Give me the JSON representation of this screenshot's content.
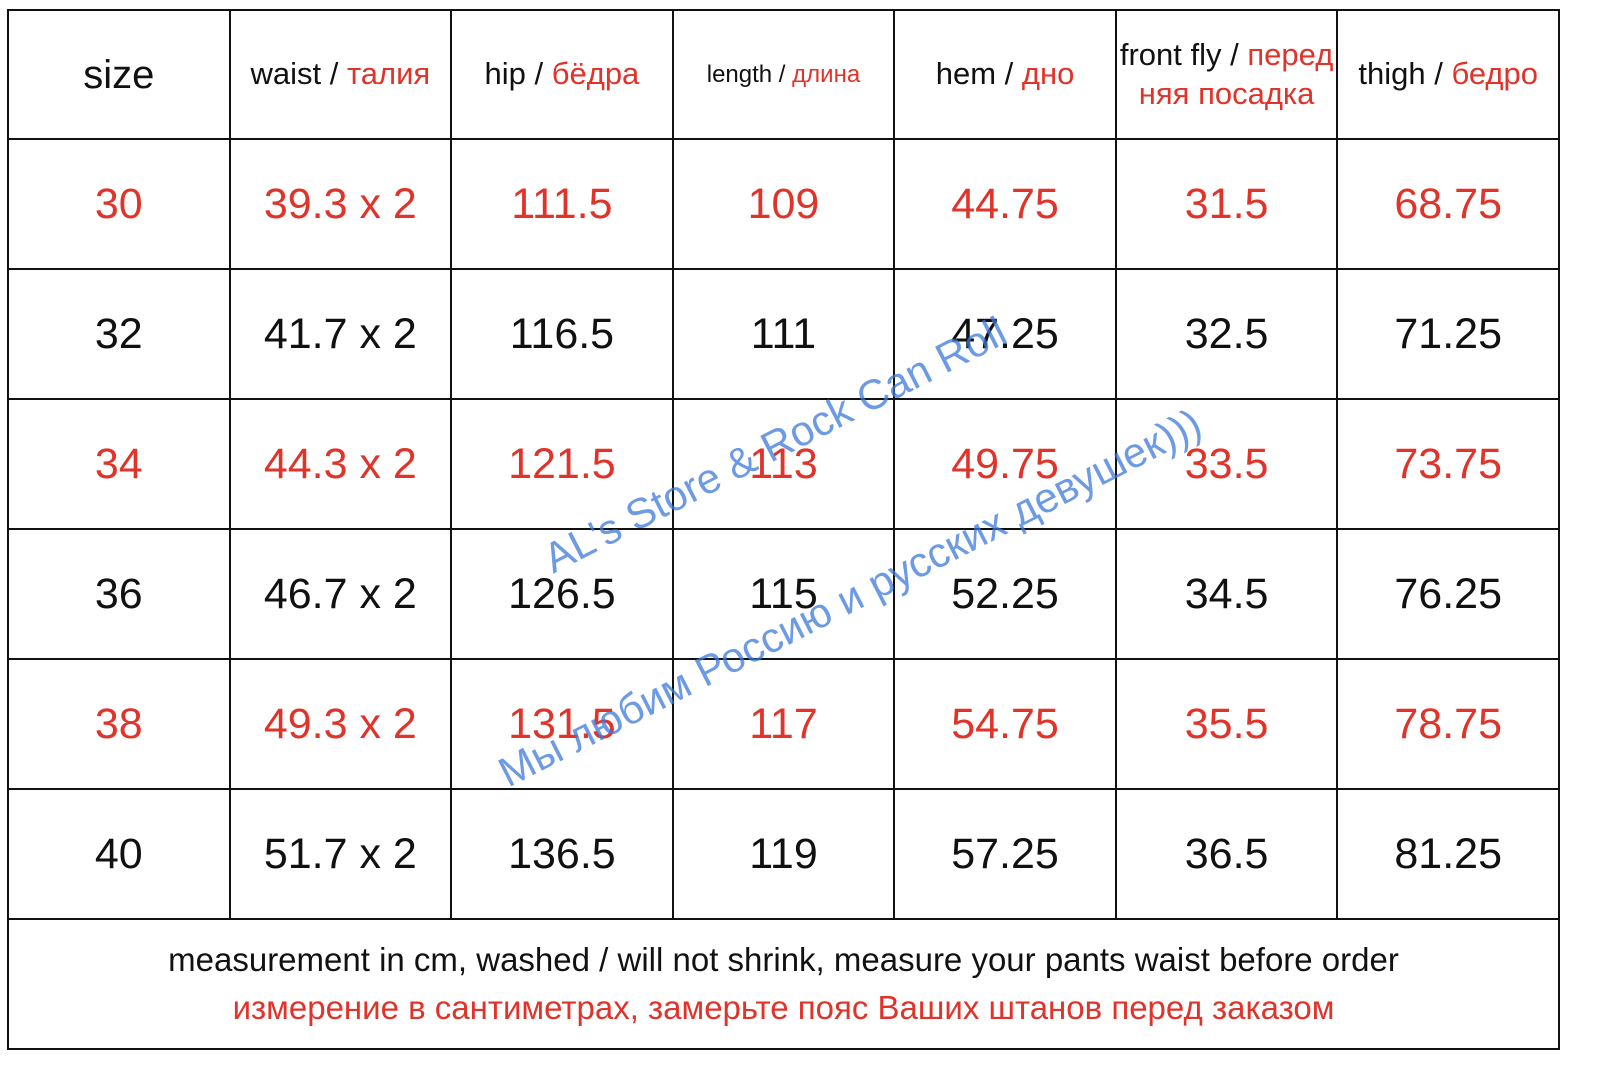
{
  "header": {
    "columns": [
      {
        "en": "size"
      },
      {
        "en": "waist /",
        "ru": "талия"
      },
      {
        "en": "hip /",
        "ru": "бёдра"
      },
      {
        "en": "length /",
        "ru": "длина"
      },
      {
        "en": "hem /",
        "ru": "дно"
      },
      {
        "en": "front fly /",
        "ru": "передняя посадка"
      },
      {
        "en": "thigh /",
        "ru": "бедро"
      }
    ]
  },
  "table": {
    "rows": [
      [
        "30",
        "39.3 x 2",
        "111.5",
        "109",
        "44.75",
        "31.5",
        "68.75"
      ],
      [
        "32",
        "41.7 x 2",
        "116.5",
        "111",
        "47.25",
        "32.5",
        "71.25"
      ],
      [
        "34",
        "44.3 x 2",
        "121.5",
        "113",
        "49.75",
        "33.5",
        "73.75"
      ],
      [
        "36",
        "46.7 x 2",
        "126.5",
        "115",
        "52.25",
        "34.5",
        "76.25"
      ],
      [
        "38",
        "49.3 x 2",
        "131.5",
        "117",
        "54.75",
        "35.5",
        "78.75"
      ],
      [
        "40",
        "51.7 x 2",
        "136.5",
        "119",
        "57.25",
        "36.5",
        "81.25"
      ]
    ]
  },
  "footer": {
    "en": "measurement in cm, washed / will not shrink, measure your pants waist before order",
    "ru": "измерение в сантиметрах, замерьте пояс Ваших штанов перед заказом"
  },
  "watermark": {
    "line1": "AL's Store & Rock Can Roll",
    "line2": "Мы любим Россию и русских девушек)))"
  }
}
